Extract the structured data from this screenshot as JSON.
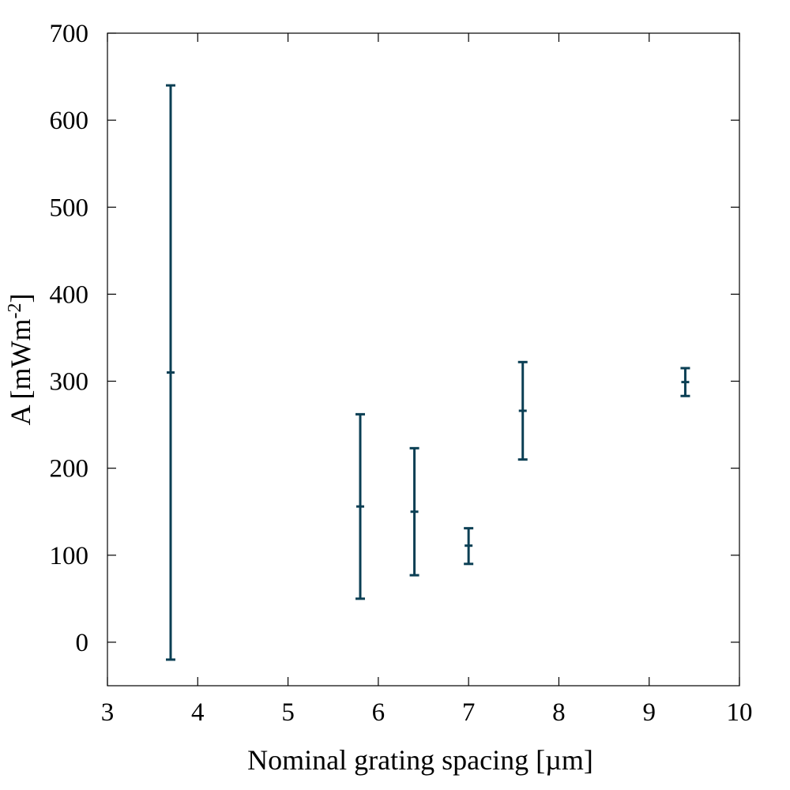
{
  "chart_data": {
    "type": "scatter",
    "xlabel": "Nominal grating spacing [µm]",
    "ylabel_main": "A [mWm",
    "ylabel_sup": "-2",
    "ylabel_close": "]",
    "xlim": [
      3,
      10
    ],
    "ylim": [
      -50,
      700
    ],
    "xticks": [
      3,
      4,
      5,
      6,
      7,
      8,
      9,
      10
    ],
    "yticks": [
      0,
      100,
      200,
      300,
      400,
      500,
      600,
      700
    ],
    "grid": false,
    "series_color": "#0b3f54",
    "points": [
      {
        "x": 3.7,
        "y": 310,
        "ylow": -20,
        "yhigh": 640
      },
      {
        "x": 5.8,
        "y": 156,
        "ylow": 50,
        "yhigh": 262
      },
      {
        "x": 6.4,
        "y": 150,
        "ylow": 77,
        "yhigh": 223
      },
      {
        "x": 7.0,
        "y": 111,
        "ylow": 90,
        "yhigh": 131
      },
      {
        "x": 7.6,
        "y": 266,
        "ylow": 210,
        "yhigh": 322
      },
      {
        "x": 9.4,
        "y": 299,
        "ylow": 283,
        "yhigh": 315
      }
    ]
  }
}
